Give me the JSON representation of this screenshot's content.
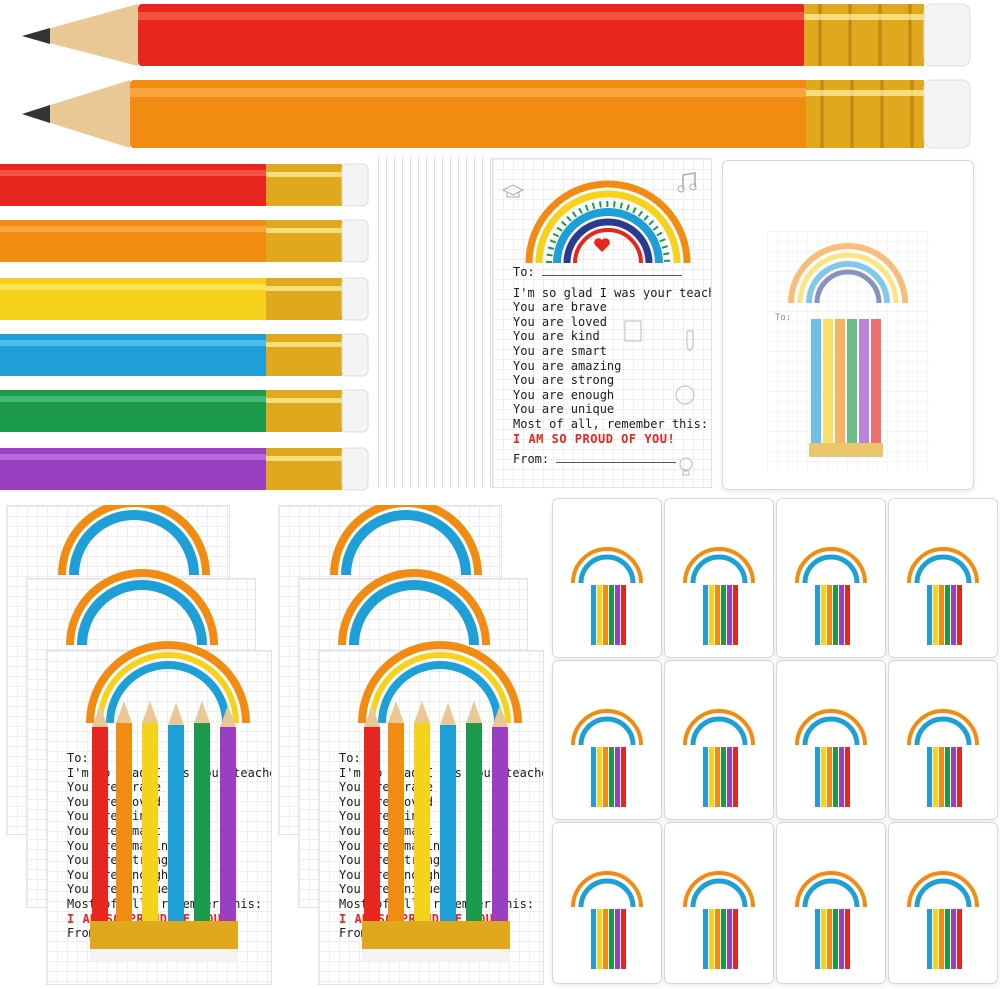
{
  "colors": {
    "red": "#e6261f",
    "orange": "#f28b12",
    "yellow": "#f7d21c",
    "blue": "#1e9fd8",
    "green": "#1b9a4b",
    "purple": "#9b3fc2",
    "ferrule": "#e0a81d",
    "wood": "#e9c896",
    "graphite": "#333333",
    "eraser": "#f4f4f4"
  },
  "card": {
    "to_label": "To:",
    "lines": [
      "I'm so glad I was your teacher",
      "You are brave",
      "You are loved",
      "You are kind",
      "You are smart",
      "You are amazing",
      "You are strong",
      "You are enough",
      "You are unique",
      "Most of all, remember this:"
    ],
    "proud_text": "I AM SO PROUD OF YOU!",
    "from_label": "From:"
  },
  "icons": [
    "graduation-cap-icon",
    "music-note-icon",
    "pencil-icon",
    "globe-icon",
    "apple-icon",
    "lightbulb-icon",
    "abc-book-icon",
    "heart-icon"
  ]
}
